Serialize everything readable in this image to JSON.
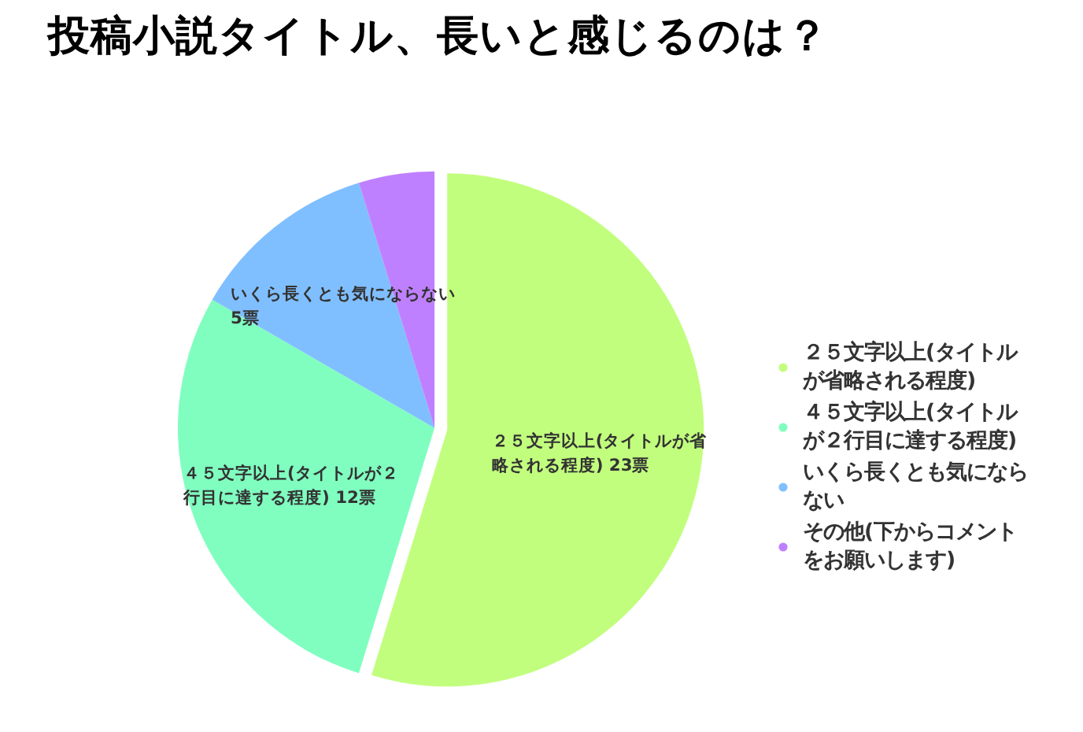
{
  "chart_data": {
    "type": "pie",
    "title": "投稿小説タイトル、長いと感じるのは？",
    "categories": [
      "２５文字以上(タイトルが省略される程度)",
      "４５文字以上(タイトルが２行目に達する程度)",
      "いくら長くとも気にならない",
      "その他(下からコメントをお願いします)"
    ],
    "values": [
      23,
      12,
      5,
      2
    ],
    "value_labels": [
      "２５文字以上(タイトルが省略される程度) 23票",
      "４５文字以上(タイトルが２行目に達する程度) 12票",
      "いくら長くとも気にならない 5票",
      null
    ],
    "colors": [
      "#c2fe7e",
      "#80fec0",
      "#80bfff",
      "#bf80ff"
    ],
    "legend": "right"
  }
}
